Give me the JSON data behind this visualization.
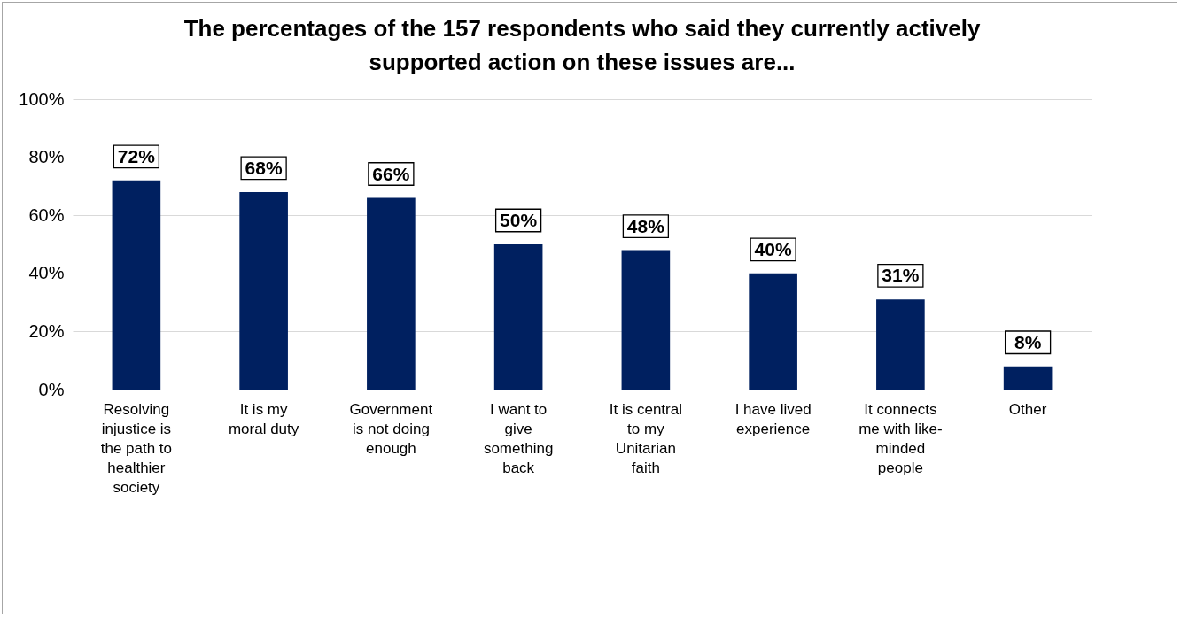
{
  "chart_data": {
    "type": "bar",
    "title": "The percentages of the 157 respondents who said they currently actively supported action on these issues are...",
    "categories": [
      "Resolving injustice is the path to healthier society",
      "It is my moral duty",
      "Government is not doing enough",
      "I want to give something back",
      "It is central to my Unitarian faith",
      "I have lived experience",
      "It connects me with like-minded people",
      "Other"
    ],
    "values": [
      72,
      68,
      66,
      50,
      48,
      40,
      31,
      8
    ],
    "value_labels": [
      "72%",
      "68%",
      "66%",
      "50%",
      "48%",
      "40%",
      "31%",
      "8%"
    ],
    "color": "#002060",
    "ylim": [
      0,
      100
    ],
    "yticks": [
      {
        "value": 0,
        "label": "0%"
      },
      {
        "value": 20,
        "label": "20%"
      },
      {
        "value": 40,
        "label": "40%"
      },
      {
        "value": 60,
        "label": "60%"
      },
      {
        "value": 80,
        "label": "80%"
      },
      {
        "value": 100,
        "label": "100%"
      }
    ],
    "grid": "y"
  }
}
